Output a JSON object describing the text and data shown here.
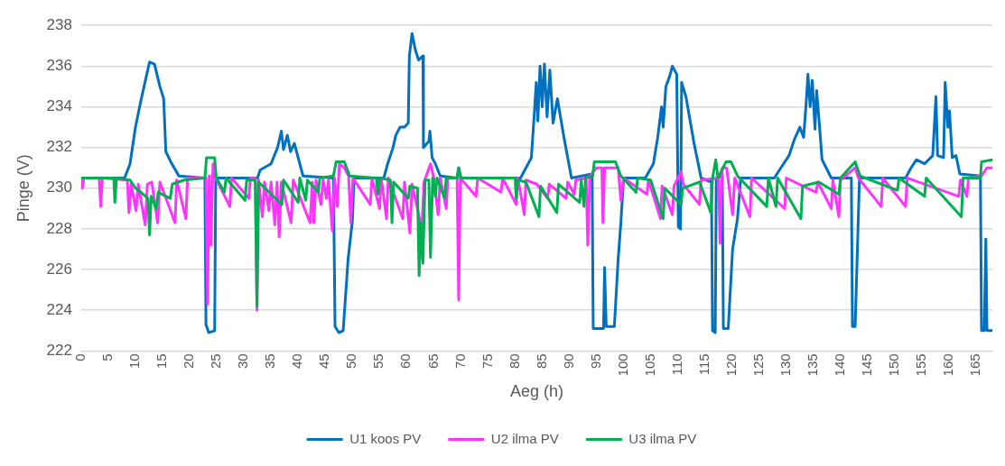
{
  "chart_data": {
    "type": "line",
    "xlabel": "Aeg (h)",
    "ylabel": "Pinge (V)",
    "xlim": [
      0,
      168
    ],
    "xticks": [
      0,
      5,
      10,
      15,
      20,
      25,
      30,
      35,
      40,
      45,
      50,
      55,
      60,
      65,
      70,
      75,
      80,
      85,
      90,
      95,
      100,
      105,
      110,
      115,
      120,
      125,
      130,
      135,
      140,
      145,
      150,
      155,
      160,
      165
    ],
    "ylim": [
      222,
      238
    ],
    "yticks": [
      222,
      224,
      226,
      228,
      230,
      232,
      234,
      236,
      238
    ],
    "grid": "y",
    "legend": "bottom",
    "marker": "none",
    "line_style": "solid",
    "series": [
      {
        "name": "U1 koos PV",
        "color": "#0070c0",
        "x": [
          0,
          8,
          9,
          10,
          11,
          12,
          12.6,
          13.5,
          14.5,
          15.2,
          15.6,
          16.5,
          18,
          22.8,
          23,
          23.5,
          24.6,
          24.8,
          32.5,
          33,
          35,
          36.2,
          36.9,
          37.3,
          38,
          38.6,
          39.3,
          40.9,
          46.5,
          46.8,
          47.5,
          48.3,
          49.2,
          50,
          50.3,
          55.8,
          56.5,
          57.5,
          58,
          58.8,
          59.6,
          60.3,
          60.5,
          61,
          61.6,
          62.2,
          63,
          63.1,
          64.1,
          64.3,
          64.7,
          65.3,
          66.2,
          69.3,
          69.6,
          70,
          81,
          82,
          83,
          83.5,
          83.9,
          84.2,
          84.6,
          85,
          85.4,
          85.9,
          86.4,
          87,
          87.8,
          89,
          90.4,
          94.2,
          94.4,
          96.3,
          96.5,
          96.8,
          98.3,
          99,
          99.5,
          100,
          104,
          105.5,
          106.3,
          107,
          107.3,
          107.8,
          108.5,
          109,
          109.8,
          110.1,
          110.5,
          110.7,
          111.5,
          113,
          114.3,
          116.2,
          116.4,
          116.9,
          117.1,
          118.2,
          118.4,
          119.3,
          120.1,
          121,
          121.6,
          127.8,
          129,
          130.5,
          131.5,
          132.5,
          133.2,
          133.7,
          134,
          134.4,
          134.8,
          135.3,
          135.6,
          136,
          136.6,
          138.3,
          142,
          142.2,
          142.7,
          143.5,
          152,
          153,
          154,
          155.5,
          157,
          157.6,
          157.9,
          159,
          159.3,
          159.8,
          160.1,
          160.6,
          161.3,
          162,
          165.8,
          166,
          166.5,
          166.8,
          167,
          168
        ],
        "values": [
          230.5,
          230.5,
          231.2,
          233,
          234.3,
          235.5,
          236.2,
          236.1,
          235,
          234.4,
          231.8,
          231.3,
          230.6,
          230.5,
          223.3,
          222.9,
          223,
          230.5,
          230.5,
          230.9,
          231.2,
          232,
          232.8,
          231.9,
          232.6,
          231.8,
          232.2,
          230.6,
          230.5,
          223.2,
          222.9,
          223,
          226.5,
          228.4,
          230.5,
          230.5,
          231.2,
          232,
          232.6,
          233,
          233,
          233.2,
          236.5,
          237.6,
          236.8,
          236.3,
          236.5,
          232,
          232.3,
          232.8,
          231.5,
          231.2,
          230.6,
          230.5,
          231,
          230.5,
          230.5,
          231,
          231.5,
          233.5,
          235.2,
          233.3,
          236,
          234,
          236.1,
          233.5,
          235.8,
          233.2,
          234.4,
          232.5,
          230.5,
          230.7,
          223.1,
          223.1,
          226.1,
          223.2,
          223.2,
          226.5,
          228.3,
          230.5,
          230.5,
          231.2,
          232.5,
          234,
          233,
          235,
          235.5,
          236,
          235.6,
          228.1,
          228,
          235.2,
          234.5,
          232.2,
          230.5,
          230.3,
          223,
          222.9,
          230.5,
          230.6,
          223.1,
          223.1,
          227,
          228.5,
          230.5,
          230.5,
          231,
          231.6,
          232.4,
          233,
          232.5,
          234.3,
          235.6,
          234,
          235.3,
          232.9,
          234.8,
          233.5,
          231.4,
          230.5,
          230.5,
          223.2,
          223.2,
          230.5,
          230.5,
          231,
          231.4,
          231.2,
          231.6,
          234.5,
          231.6,
          231.5,
          235.2,
          233,
          233.8,
          231.5,
          231.6,
          230.7,
          230.6,
          223,
          223,
          227.5,
          223,
          223
        ]
      },
      {
        "name": "U2 ilma PV",
        "color": "#ff33ff",
        "x": [
          0,
          0.2,
          0.5,
          3.3,
          3.6,
          3.9,
          8.5,
          8.8,
          9.2,
          10.1,
          10.5,
          11.8,
          12.2,
          13,
          14.1,
          14.5,
          17.3,
          17.6,
          19.3,
          19.6,
          23,
          23.3,
          23.6,
          23.9,
          24.3,
          24.8,
          27.4,
          27.7,
          30.9,
          31.2,
          32.1,
          32.4,
          32.7,
          33.4,
          33.8,
          34.6,
          35,
          35.7,
          36.1,
          36.5,
          36.9,
          38.7,
          39.1,
          42.2,
          42.6,
          42.9,
          43.3,
          44.2,
          44.6,
          45.2,
          45.6,
          46.3,
          46.7,
          47.2,
          47.6,
          48.5,
          49.3,
          49.7,
          50.1,
          53.3,
          53.6,
          55,
          55.3,
          56.3,
          56.6,
          59.3,
          59.6,
          60.6,
          61,
          62.8,
          63.2,
          64.4,
          65,
          65.8,
          66.2,
          67.3,
          67.6,
          69.3,
          69.6,
          69.9,
          72.8,
          73.1,
          77.4,
          77.7,
          80.2,
          80.5,
          81.7,
          82,
          84,
          86,
          86.3,
          89.4,
          89.7,
          90.9,
          91.2,
          93.1,
          93.4,
          93.8,
          95,
          96,
          96.2,
          96.5,
          99,
          99.5,
          100,
          104.3,
          104.6,
          106.8,
          107.1,
          109,
          109.3,
          110.6,
          111,
          114,
          114.3,
          117.5,
          117.8,
          118.2,
          119,
          120.1,
          120.5,
          123.3,
          123.6,
          129.7,
          130,
          135.5,
          135.8,
          138.3,
          138.6,
          139.7,
          140,
          142.7,
          143.3,
          147.5,
          147.8,
          152,
          152.3,
          161.8,
          162.1,
          163.3,
          163.6,
          166,
          167,
          168
        ],
        "values": [
          230.5,
          230,
          230.5,
          230.5,
          229.1,
          230.5,
          230.4,
          228.8,
          230.2,
          228.9,
          230.2,
          228.2,
          230.2,
          230.3,
          228.3,
          230.3,
          228.3,
          230.4,
          228.5,
          230.5,
          230.5,
          224.3,
          230.6,
          227.2,
          231.2,
          230.5,
          229.1,
          230.5,
          229.5,
          230.5,
          230.5,
          224,
          230.4,
          228.6,
          230.3,
          228.9,
          230.3,
          228.2,
          230.3,
          227.6,
          230.3,
          228.3,
          230.4,
          228.3,
          230.3,
          228.3,
          230.4,
          229.2,
          230.4,
          229.5,
          230.4,
          227.9,
          230.5,
          229.1,
          231.2,
          231,
          230.6,
          228.3,
          230.5,
          229.2,
          230.5,
          229,
          230.5,
          228.5,
          230.5,
          228.5,
          230.3,
          227.8,
          230.2,
          228,
          230.3,
          231.2,
          230.5,
          228.7,
          230.5,
          229,
          230.5,
          230.5,
          224.5,
          230.5,
          229.6,
          230.5,
          229.8,
          230.5,
          229.2,
          230.5,
          228.7,
          230.4,
          230.2,
          229.5,
          230.2,
          229.5,
          230.3,
          229.7,
          230.4,
          230.5,
          227.2,
          230.6,
          231,
          231,
          228.3,
          231,
          231,
          229.4,
          230.5,
          229.7,
          230.4,
          228.5,
          230.1,
          228.7,
          230.1,
          230.8,
          230.2,
          229.2,
          230.4,
          230.5,
          227.3,
          231,
          231,
          228.7,
          230.5,
          228.6,
          230.5,
          229,
          230.5,
          229.8,
          230.3,
          229,
          230.4,
          228.6,
          230.4,
          231,
          230.5,
          229.1,
          230.5,
          229.1,
          230.5,
          229.6,
          230.4,
          229.6,
          230.5,
          230.6,
          231,
          231
        ]
      },
      {
        "name": "U3 ilma PV",
        "color": "#00b050",
        "x": [
          0,
          6,
          6.2,
          6.5,
          9,
          10,
          11,
          12.3,
          12.6,
          12.9,
          13.8,
          14.2,
          16.4,
          16.8,
          19,
          22.8,
          23.1,
          24.6,
          24.9,
          26.4,
          26.7,
          30.2,
          30.5,
          32.1,
          32.4,
          32.7,
          37,
          37.3,
          40,
          40.3,
          41.4,
          41.7,
          43.7,
          44,
          46.5,
          47,
          48.5,
          49.5,
          54.4,
          54.7,
          55,
          57,
          57.3,
          57.6,
          60.3,
          60.6,
          62,
          62.3,
          62.6,
          63,
          63.4,
          64.1,
          64.4,
          64.8,
          65.3,
          65.6,
          67,
          67.3,
          69.3,
          69.6,
          70,
          80,
          80.2,
          80.5,
          82,
          84.4,
          84.7,
          87.7,
          88,
          91.9,
          92.2,
          92.7,
          93,
          94.3,
          94.6,
          98.5,
          99.5,
          102.3,
          102.6,
          105,
          107.3,
          107.6,
          110.6,
          110.9,
          114,
          116.1,
          116.4,
          117,
          117.4,
          118.9,
          119.8,
          121,
          126.4,
          126.7,
          128.1,
          128.4,
          132.7,
          133,
          136,
          139.7,
          140,
          142.7,
          143.6,
          150.5,
          150.8,
          155.5,
          155.8,
          162.3,
          162.6,
          165.8,
          166,
          168
        ],
        "values": [
          230.5,
          230.5,
          229.3,
          230.5,
          230.4,
          230,
          229.8,
          229.5,
          227.7,
          229.6,
          229,
          229.8,
          229.5,
          230.2,
          230.4,
          230.5,
          231.5,
          231.5,
          230.5,
          229.8,
          230.5,
          229.4,
          230.4,
          230.4,
          224.2,
          230.3,
          229.2,
          230.4,
          229.3,
          230.5,
          229.4,
          230.4,
          229.8,
          230.5,
          230.6,
          231.3,
          231.3,
          230.6,
          230.5,
          229.7,
          230.5,
          230.4,
          228.3,
          230.3,
          229.5,
          230.1,
          230,
          225.7,
          228.3,
          226.3,
          230.4,
          230.4,
          226.6,
          230.5,
          229.6,
          230.5,
          229.5,
          230.5,
          230.5,
          231,
          230.5,
          230.5,
          229.5,
          230.4,
          230.3,
          228.6,
          230.1,
          228.8,
          230.2,
          229.3,
          230.4,
          229.1,
          230.5,
          230.6,
          231.3,
          231.3,
          230.6,
          229.8,
          230.5,
          230.4,
          228.5,
          230,
          229.2,
          230,
          230.3,
          228.8,
          230.5,
          231.4,
          230.5,
          231.3,
          231.3,
          230.6,
          229.1,
          230.5,
          229.1,
          230.5,
          228.5,
          230.1,
          230.3,
          229.7,
          230.5,
          231.3,
          230.6,
          229.9,
          230.5,
          229.6,
          230.5,
          228.6,
          230.5,
          230.5,
          231.3,
          231.4
        ]
      }
    ]
  }
}
